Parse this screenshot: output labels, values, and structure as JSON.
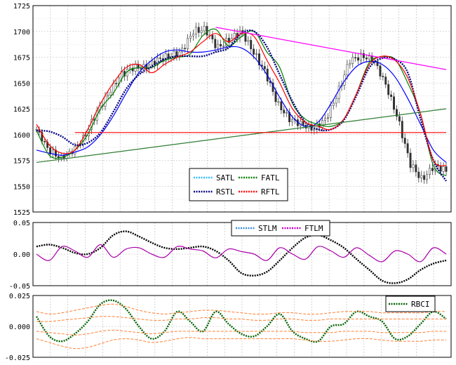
{
  "chart_data": [
    {
      "type": "candlestick",
      "title": "",
      "xlabel": "",
      "ylabel": "",
      "ylim": [
        1525,
        1725
      ],
      "yticks": [
        "1725",
        "1700",
        "1675",
        "1650",
        "1625",
        "1600",
        "1575",
        "1550",
        "1525"
      ],
      "grid": true,
      "legend": {
        "position": "bottom-center",
        "entries": [
          "SATL",
          "FATL",
          "RSTL",
          "RFTL"
        ]
      },
      "series": [
        {
          "name": "SATL",
          "style": "line",
          "color": "#0000ff",
          "values": [
            1585,
            1582,
            1580,
            1583,
            1588,
            1600,
            1618,
            1640,
            1660,
            1672,
            1680,
            1682,
            1680,
            1680,
            1682,
            1685,
            1684,
            1675,
            1658,
            1636,
            1617,
            1608,
            1612,
            1630,
            1651,
            1666,
            1671,
            1668,
            1656,
            1635,
            1610,
            1585,
            1573
          ]
        },
        {
          "name": "FATL",
          "style": "line",
          "color": "#008000",
          "values": [
            1604,
            1580,
            1578,
            1585,
            1600,
            1625,
            1640,
            1660,
            1665,
            1665,
            1672,
            1675,
            1678,
            1696,
            1702,
            1686,
            1695,
            1700,
            1680,
            1665,
            1630,
            1615,
            1610,
            1608,
            1615,
            1640,
            1670,
            1675,
            1673,
            1650,
            1620,
            1570,
            1560
          ]
        },
        {
          "name": "RSTL",
          "style": "dotted",
          "color": "#000080",
          "values": [
            1604,
            1603,
            1598,
            1590,
            1592,
            1602,
            1622,
            1644,
            1658,
            1666,
            1673,
            1676,
            1676,
            1676,
            1680,
            1684,
            1698,
            1700,
            1685,
            1658,
            1632,
            1612,
            1605,
            1605,
            1614,
            1638,
            1665,
            1674,
            1673,
            1660,
            1615,
            1575,
            1555
          ]
        },
        {
          "name": "RFTL",
          "style": "line",
          "color": "#ff0000",
          "values": [
            1610,
            1590,
            1582,
            1585,
            1605,
            1630,
            1650,
            1665,
            1668,
            1660,
            1668,
            1675,
            1680,
            1690,
            1698,
            1690,
            1698,
            1695,
            1672,
            1650,
            1625,
            1612,
            1608,
            1605,
            1615,
            1640,
            1668,
            1676,
            1672,
            1655,
            1620,
            1575,
            1570
          ]
        },
        {
          "name": "",
          "style": "line",
          "color": "#ff00ff",
          "x": [
            14,
            32
          ],
          "values": [
            1704,
            1663
          ]
        },
        {
          "name": "",
          "style": "line",
          "color": "#2e7d32",
          "x": [
            0,
            32
          ],
          "values": [
            1573,
            1625
          ]
        },
        {
          "name": "",
          "style": "line",
          "color": "#ff0000",
          "x": [
            3,
            32
          ],
          "values": [
            1602,
            1602
          ]
        }
      ]
    },
    {
      "type": "line",
      "title": "",
      "ylim": [
        -0.05,
        0.05
      ],
      "yticks": [
        "0.05",
        "0.00",
        "-0.05"
      ],
      "grid": true,
      "legend": {
        "position": "top-center",
        "entries": [
          "STLM",
          "FTLM"
        ]
      },
      "series": [
        {
          "name": "STLM",
          "style": "dotted",
          "color": "#000000",
          "values": [
            0.012,
            0.015,
            0.01,
            0.002,
            0.0,
            0.01,
            0.03,
            0.036,
            0.028,
            0.018,
            0.01,
            0.008,
            0.01,
            0.012,
            0.005,
            -0.01,
            -0.03,
            -0.034,
            -0.028,
            -0.01,
            0.01,
            0.026,
            0.03,
            0.022,
            0.01,
            -0.008,
            -0.025,
            -0.042,
            -0.046,
            -0.04,
            -0.025,
            -0.015,
            -0.01
          ]
        },
        {
          "name": "FTLM",
          "style": "line",
          "color": "#aa00aa",
          "values": [
            0.0,
            -0.01,
            0.012,
            0.005,
            -0.005,
            0.015,
            -0.005,
            0.008,
            0.01,
            0.0,
            -0.005,
            0.012,
            0.008,
            0.005,
            -0.006,
            0.008,
            0.004,
            0.0,
            -0.01,
            0.01,
            0.0,
            -0.008,
            0.012,
            0.005,
            -0.005,
            0.01,
            -0.002,
            -0.012,
            0.005,
            0.0,
            -0.012,
            0.01,
            0.0
          ]
        }
      ]
    },
    {
      "type": "line",
      "title": "",
      "ylim": [
        -0.025,
        0.025
      ],
      "yticks": [
        "0.025",
        "0.000",
        "-0.025"
      ],
      "grid": true,
      "legend": {
        "position": "top-right",
        "entries": [
          "RBCI"
        ]
      },
      "series": [
        {
          "name": "RBCI",
          "style": "dotted",
          "color": "#006400",
          "values": [
            0.008,
            -0.008,
            -0.012,
            -0.006,
            0.004,
            0.018,
            0.021,
            0.014,
            0.0,
            -0.01,
            -0.004,
            0.012,
            0.004,
            -0.004,
            0.012,
            0.002,
            -0.006,
            -0.008,
            0.0,
            0.01,
            -0.004,
            -0.01,
            -0.012,
            0.0,
            0.002,
            0.012,
            0.008,
            0.004,
            -0.01,
            -0.008,
            0.002,
            0.012,
            0.006
          ]
        },
        {
          "name": "",
          "style": "dashed",
          "color": "#ff7f32",
          "values": [
            0.012,
            0.01,
            0.011,
            0.013,
            0.015,
            0.017,
            0.018,
            0.016,
            0.013,
            0.011,
            0.01,
            0.011,
            0.012,
            0.013,
            0.013,
            0.012,
            0.011,
            0.01,
            0.01,
            0.011,
            0.011,
            0.01,
            0.01,
            0.011,
            0.012,
            0.012,
            0.012,
            0.011,
            0.011,
            0.011,
            0.011,
            0.012,
            0.012
          ]
        },
        {
          "name": "",
          "style": "dashed",
          "color": "#ff7f32",
          "values": [
            0.004,
            0.004,
            0.005,
            0.006,
            0.007,
            0.008,
            0.008,
            0.007,
            0.006,
            0.005,
            0.005,
            0.006,
            0.006,
            0.007,
            0.007,
            0.006,
            0.006,
            0.005,
            0.005,
            0.006,
            0.006,
            0.005,
            0.005,
            0.006,
            0.006,
            0.006,
            0.006,
            0.006,
            0.006,
            0.006,
            0.006,
            0.006,
            0.006
          ]
        },
        {
          "name": "",
          "style": "dashed",
          "color": "#ff7f32",
          "values": [
            -0.004,
            -0.005,
            -0.006,
            -0.007,
            -0.006,
            -0.004,
            -0.003,
            -0.004,
            -0.005,
            -0.006,
            -0.005,
            -0.004,
            -0.004,
            -0.004,
            -0.004,
            -0.004,
            -0.004,
            -0.004,
            -0.004,
            -0.004,
            -0.004,
            -0.005,
            -0.005,
            -0.005,
            -0.004,
            -0.004,
            -0.004,
            -0.005,
            -0.005,
            -0.005,
            -0.005,
            -0.004,
            -0.004
          ]
        },
        {
          "name": "",
          "style": "dashed",
          "color": "#ff7f32",
          "values": [
            -0.01,
            -0.013,
            -0.016,
            -0.018,
            -0.017,
            -0.014,
            -0.011,
            -0.01,
            -0.011,
            -0.013,
            -0.012,
            -0.01,
            -0.009,
            -0.01,
            -0.01,
            -0.01,
            -0.01,
            -0.01,
            -0.01,
            -0.01,
            -0.01,
            -0.011,
            -0.012,
            -0.012,
            -0.011,
            -0.01,
            -0.01,
            -0.011,
            -0.012,
            -0.012,
            -0.012,
            -0.011,
            -0.011
          ]
        }
      ]
    }
  ],
  "price": {
    "close": [
      1605,
      1585,
      1577,
      1584,
      1598,
      1622,
      1640,
      1658,
      1665,
      1665,
      1672,
      1676,
      1680,
      1700,
      1702,
      1684,
      1692,
      1700,
      1680,
      1660,
      1630,
      1615,
      1610,
      1605,
      1615,
      1640,
      1672,
      1676,
      1672,
      1648,
      1615,
      1572,
      1556,
      1570,
      1565
    ],
    "range": [
      6,
      8,
      6,
      7,
      9,
      8,
      7,
      9,
      8,
      8,
      9,
      8,
      8,
      9,
      8,
      9,
      9,
      8,
      9,
      8,
      8,
      8,
      7,
      8,
      8,
      9,
      8,
      7,
      7,
      8,
      9,
      9,
      8,
      8,
      7
    ]
  }
}
